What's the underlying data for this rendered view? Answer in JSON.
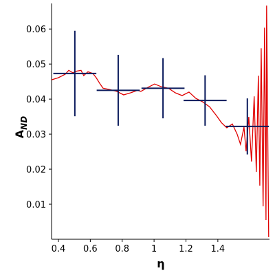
{
  "chart_data": {
    "type": "errorbar_line",
    "xlabel": "η",
    "ylabel": "A",
    "ylabel_sub": "ND",
    "xlim": [
      0.357,
      1.724
    ],
    "ylim": [
      0,
      0.0673
    ],
    "xticks": [
      0.4,
      0.6,
      0.8,
      1,
      1.2,
      1.4
    ],
    "yticks": [
      0.01,
      0.02,
      0.03,
      0.04,
      0.05,
      0.06
    ],
    "series": [
      {
        "kind": "line",
        "color": "#e00000",
        "x": [
          0.357,
          0.4,
          0.443,
          0.465,
          0.491,
          0.516,
          0.542,
          0.559,
          0.585,
          0.616,
          0.637,
          0.659,
          0.68,
          0.723,
          0.766,
          0.809,
          0.853,
          0.896,
          0.917,
          0.96,
          1.003,
          1.047,
          1.09,
          1.133,
          1.176,
          1.219,
          1.262,
          1.305,
          1.348,
          1.391,
          1.422,
          1.456,
          1.491,
          1.521,
          1.542,
          1.564,
          1.577,
          1.594,
          1.611,
          1.628,
          1.641,
          1.654,
          1.663,
          1.672,
          1.684,
          1.693,
          1.702,
          1.706,
          1.719
        ],
        "values": [
          0.0455,
          0.0461,
          0.0471,
          0.0482,
          0.0475,
          0.048,
          0.0482,
          0.0467,
          0.0478,
          0.0473,
          0.0461,
          0.0445,
          0.0431,
          0.0427,
          0.0422,
          0.0412,
          0.0418,
          0.0425,
          0.0422,
          0.0433,
          0.0443,
          0.0435,
          0.0431,
          0.0418,
          0.041,
          0.042,
          0.0402,
          0.0392,
          0.0378,
          0.0353,
          0.0333,
          0.0318,
          0.0329,
          0.03,
          0.0271,
          0.032,
          0.0251,
          0.0349,
          0.0222,
          0.0408,
          0.0192,
          0.0467,
          0.0153,
          0.0545,
          0.0094,
          0.0604,
          0.0055,
          0.0667,
          0.0006
        ]
      },
      {
        "kind": "errorbar",
        "color": "#0a1a5c",
        "x": [
          0.503,
          0.775,
          1.056,
          1.32,
          1.585
        ],
        "values": [
          0.0473,
          0.0425,
          0.0431,
          0.0396,
          0.0322
        ],
        "xerr": [
          0.135,
          0.135,
          0.135,
          0.135,
          0.135
        ],
        "yerr": [
          0.0122,
          0.0101,
          0.0086,
          0.0072,
          0.008
        ]
      }
    ]
  }
}
